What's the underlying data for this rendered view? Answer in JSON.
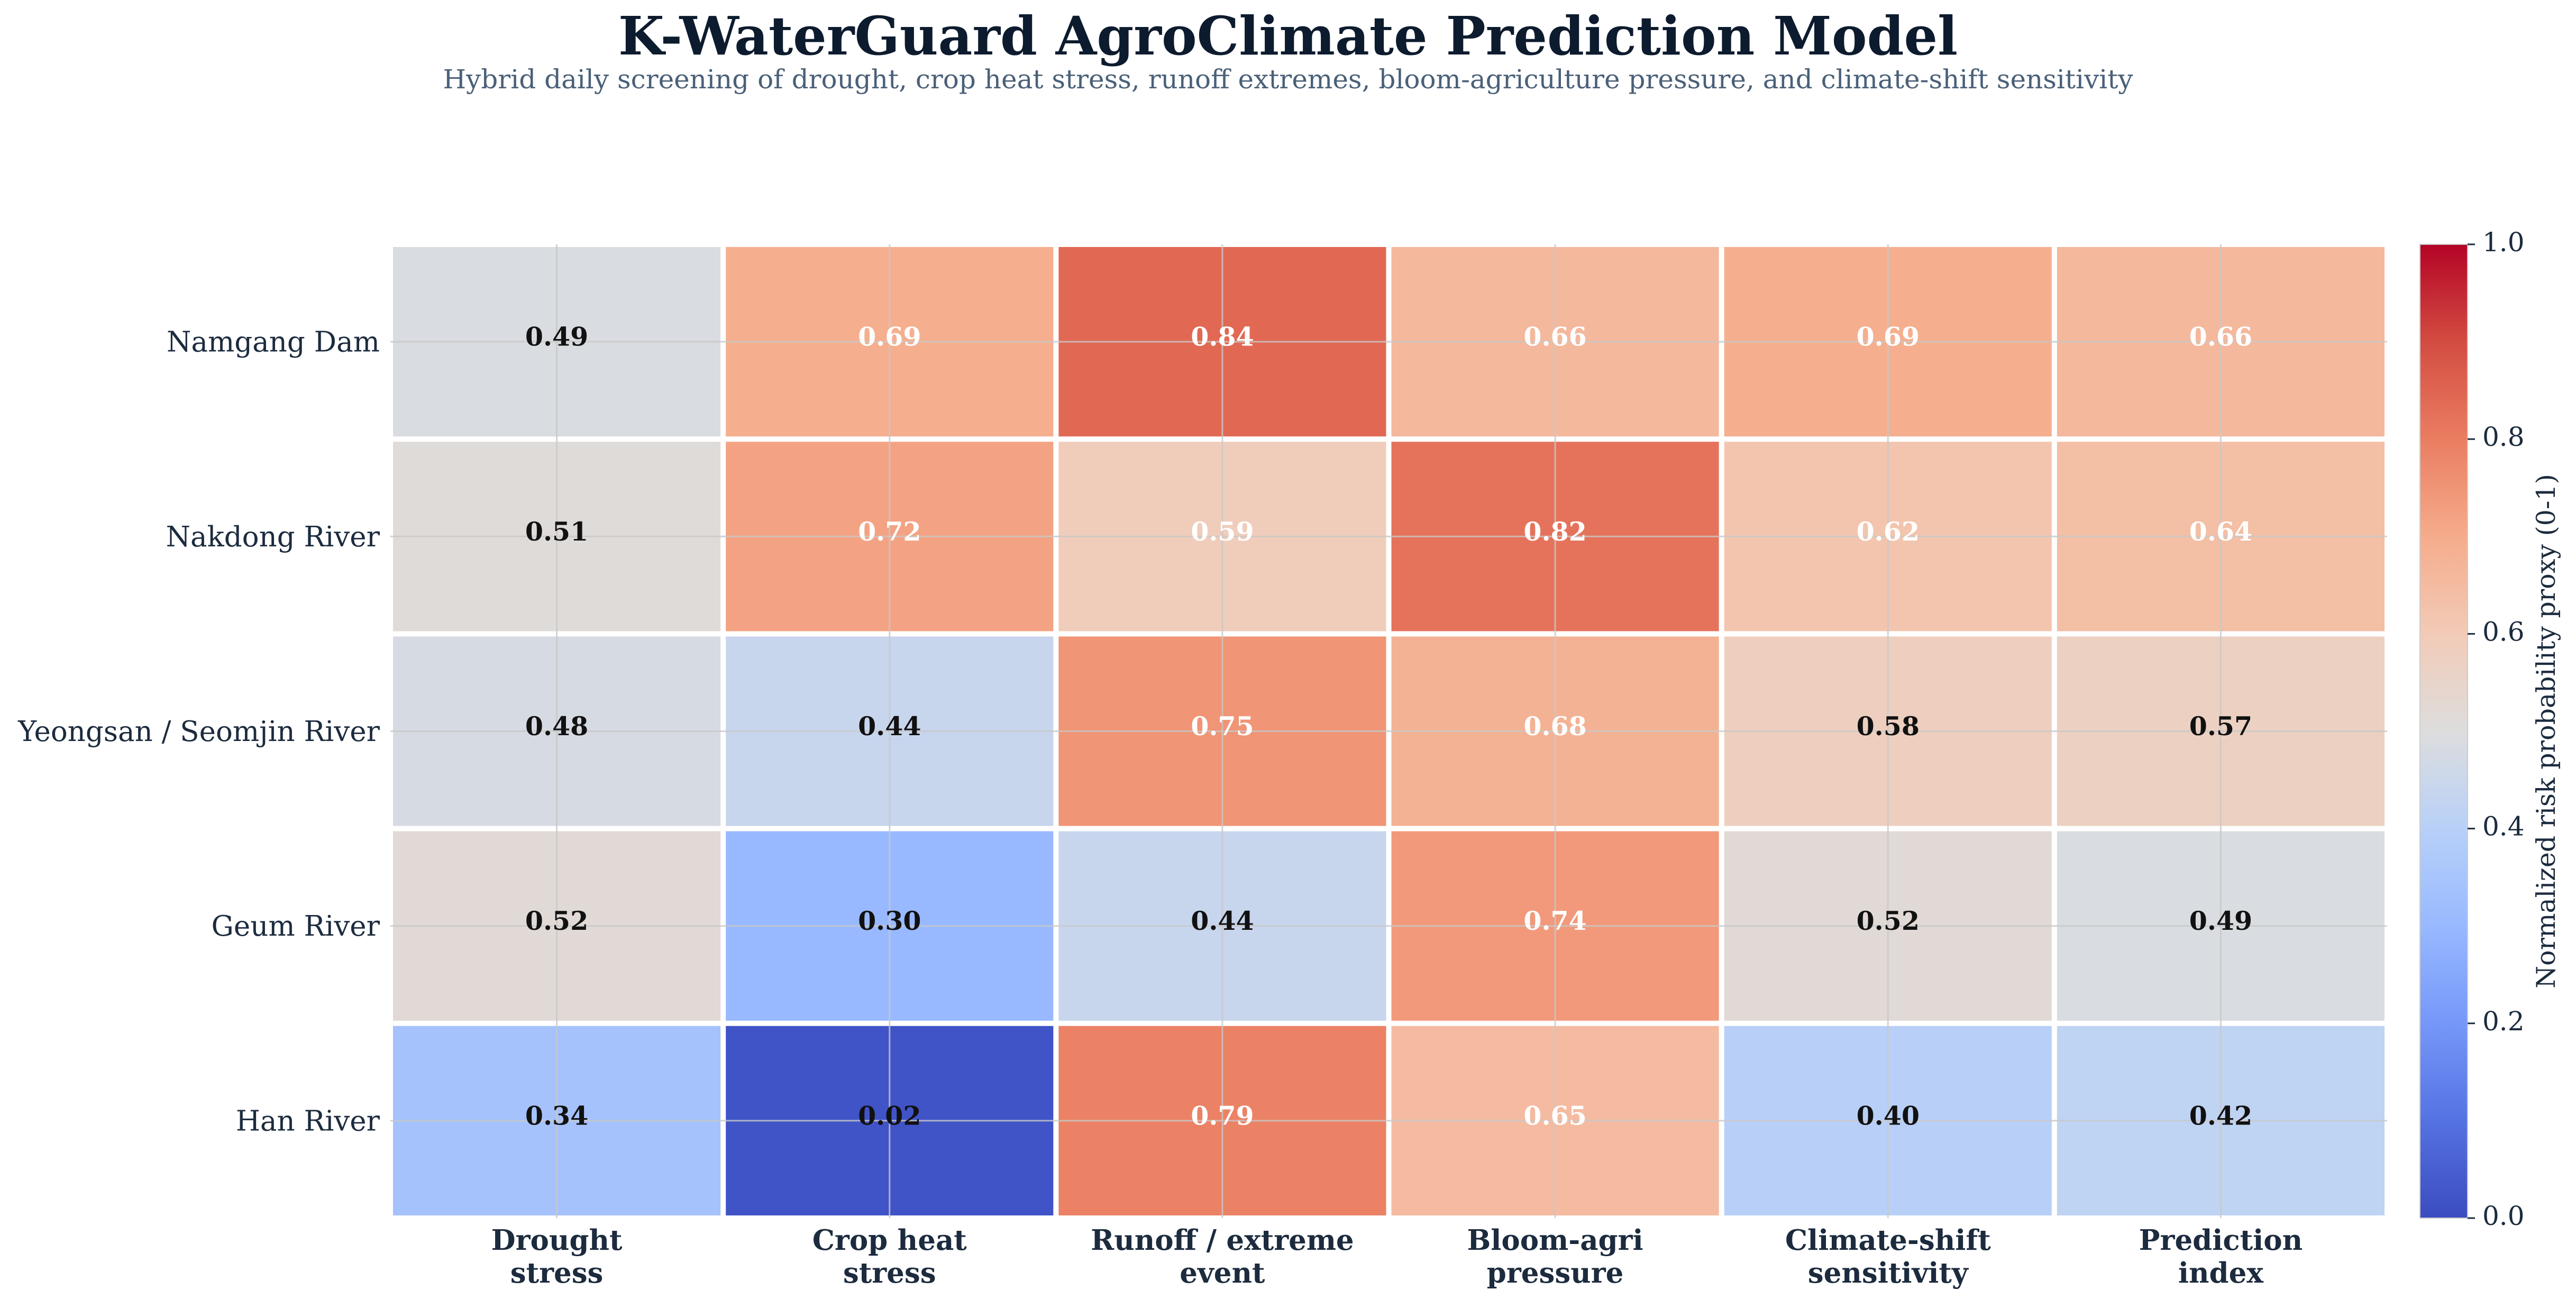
{
  "chart_data": {
    "type": "heatmap",
    "title": "K-WaterGuard AgroClimate Prediction Model",
    "subtitle": "Hybrid daily screening of drought, crop heat stress, runoff extremes, bloom-agriculture pressure, and climate-shift sensitivity",
    "rows": [
      "Namgang Dam",
      "Nakdong River",
      "Yeongsan / Seomjin River",
      "Geum River",
      "Han River"
    ],
    "columns": [
      [
        "Drought",
        "stress"
      ],
      [
        "Crop heat",
        "stress"
      ],
      [
        "Runoff / extreme",
        "event"
      ],
      [
        "Bloom-agri",
        "pressure"
      ],
      [
        "Climate-shift",
        "sensitivity"
      ],
      [
        "Prediction",
        "index"
      ]
    ],
    "values": [
      [
        0.49,
        0.69,
        0.84,
        0.66,
        0.69,
        0.66
      ],
      [
        0.51,
        0.72,
        0.59,
        0.82,
        0.62,
        0.64
      ],
      [
        0.48,
        0.44,
        0.75,
        0.68,
        0.58,
        0.57
      ],
      [
        0.52,
        0.3,
        0.44,
        0.74,
        0.52,
        0.49
      ],
      [
        0.34,
        0.02,
        0.79,
        0.65,
        0.4,
        0.42
      ]
    ],
    "value_labels": [
      [
        "0.49",
        "0.69",
        "0.84",
        "0.66",
        "0.69",
        "0.66"
      ],
      [
        "0.51",
        "0.72",
        "0.59",
        "0.82",
        "0.62",
        "0.64"
      ],
      [
        "0.48",
        "0.44",
        "0.75",
        "0.68",
        "0.58",
        "0.57"
      ],
      [
        "0.52",
        "0.30",
        "0.44",
        "0.74",
        "0.52",
        "0.49"
      ],
      [
        "0.34",
        "0.02",
        "0.79",
        "0.65",
        "0.40",
        "0.42"
      ]
    ],
    "colormap": "coolwarm",
    "colormap_colors": {
      "low": "#3b4cc0",
      "mid": "#dddddd",
      "high": "#b40426"
    },
    "vmin": 0,
    "vmax": 1,
    "colorbar": {
      "label": "Normalized risk probability proxy (0-1)",
      "ticks": [
        "0.0",
        "0.2",
        "0.4",
        "0.6",
        "0.8",
        "1.0"
      ],
      "tick_values": [
        0,
        0.2,
        0.4,
        0.6,
        0.8,
        1.0
      ]
    },
    "grid": true,
    "text_colors": {
      "dark": "#111111",
      "light": "#ffffff"
    }
  }
}
